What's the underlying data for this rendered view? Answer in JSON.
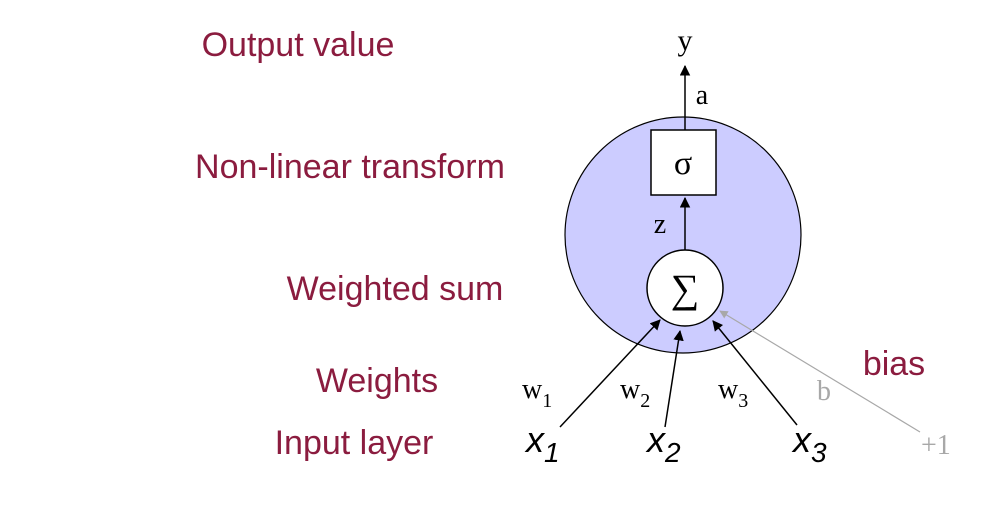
{
  "colors": {
    "label": "#8b1c3f",
    "circle_fill": "#ccccff",
    "stroke": "#000000",
    "bias_gray": "#a8a8a8",
    "box_fill": "#ffffff"
  },
  "labels": {
    "output_value": "Output value",
    "nonlinear_transform": "Non-linear transform",
    "weighted_sum": "Weighted sum",
    "weights": "Weights",
    "input_layer": "Input layer",
    "bias": "bias"
  },
  "neuron": {
    "output_symbol": "y",
    "activation_symbol": "a",
    "sigma_symbol": "σ",
    "z_symbol": "z",
    "sum_symbol": "∑"
  },
  "weights": [
    {
      "base": "w",
      "sub": "1"
    },
    {
      "base": "w",
      "sub": "2"
    },
    {
      "base": "w",
      "sub": "3"
    }
  ],
  "bias_weight": "b",
  "inputs": [
    {
      "base": "x",
      "sub": "1"
    },
    {
      "base": "x",
      "sub": "2"
    },
    {
      "base": "x",
      "sub": "3"
    }
  ],
  "bias_input": "+1"
}
